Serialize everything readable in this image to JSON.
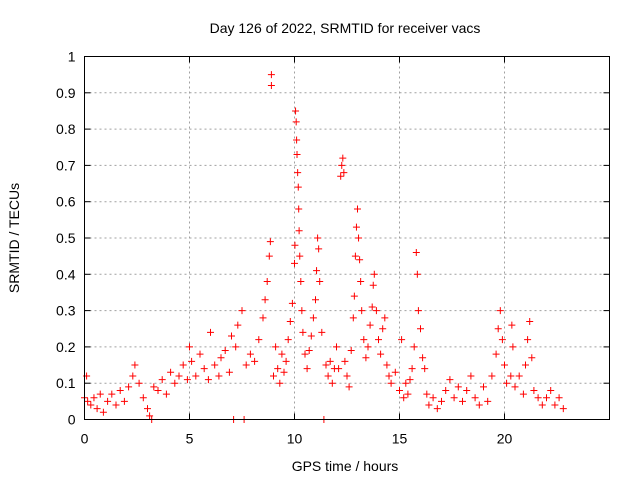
{
  "chart_data": {
    "type": "scatter",
    "title": "Day 126 of 2022, SRMTID for receiver vacs",
    "xlabel": "GPS time / hours",
    "ylabel": "SRMTID / TECUs",
    "xlim": [
      0,
      25
    ],
    "ylim": [
      0,
      1
    ],
    "xticks": [
      0,
      5,
      10,
      15,
      20
    ],
    "xtick_labels": [
      "0",
      "5",
      "10",
      "15",
      "20"
    ],
    "yticks": [
      0,
      0.1,
      0.2,
      0.3,
      0.4,
      0.5,
      0.6,
      0.7,
      0.8,
      0.9,
      1
    ],
    "ytick_labels": [
      "0",
      "0.1",
      "0.2",
      "0.3",
      "0.4",
      "0.5",
      "0.6",
      "0.7",
      "0.8",
      "0.9",
      "1"
    ],
    "grid": true,
    "marker": "+",
    "color": "#ff0000",
    "series": [
      {
        "name": "SRMTID",
        "points": [
          [
            0.0,
            0.06
          ],
          [
            0.1,
            0.12
          ],
          [
            0.15,
            0.05
          ],
          [
            0.3,
            0.04
          ],
          [
            0.45,
            0.06
          ],
          [
            0.6,
            0.03
          ],
          [
            0.75,
            0.07
          ],
          [
            0.9,
            0.02
          ],
          [
            1.1,
            0.05
          ],
          [
            1.3,
            0.07
          ],
          [
            1.5,
            0.04
          ],
          [
            1.7,
            0.08
          ],
          [
            1.9,
            0.05
          ],
          [
            2.1,
            0.09
          ],
          [
            2.3,
            0.12
          ],
          [
            2.4,
            0.15
          ],
          [
            2.6,
            0.1
          ],
          [
            2.8,
            0.06
          ],
          [
            3.0,
            0.03
          ],
          [
            3.1,
            0.01
          ],
          [
            3.2,
            0.0
          ],
          [
            3.3,
            0.09
          ],
          [
            3.5,
            0.08
          ],
          [
            3.7,
            0.11
          ],
          [
            3.9,
            0.07
          ],
          [
            4.1,
            0.13
          ],
          [
            4.3,
            0.1
          ],
          [
            4.5,
            0.12
          ],
          [
            4.7,
            0.15
          ],
          [
            4.9,
            0.11
          ],
          [
            5.0,
            0.2
          ],
          [
            5.1,
            0.16
          ],
          [
            5.3,
            0.12
          ],
          [
            5.5,
            0.18
          ],
          [
            5.7,
            0.14
          ],
          [
            5.9,
            0.11
          ],
          [
            6.0,
            0.24
          ],
          [
            6.2,
            0.15
          ],
          [
            6.4,
            0.12
          ],
          [
            6.5,
            0.17
          ],
          [
            6.7,
            0.19
          ],
          [
            6.9,
            0.13
          ],
          [
            7.0,
            0.23
          ],
          [
            7.1,
            0.0
          ],
          [
            7.2,
            0.2
          ],
          [
            7.3,
            0.26
          ],
          [
            7.5,
            0.3
          ],
          [
            7.6,
            0.0
          ],
          [
            7.7,
            0.15
          ],
          [
            7.9,
            0.18
          ],
          [
            8.1,
            0.16
          ],
          [
            8.3,
            0.22
          ],
          [
            8.5,
            0.28
          ],
          [
            8.6,
            0.33
          ],
          [
            8.7,
            0.38
          ],
          [
            8.8,
            0.45
          ],
          [
            8.85,
            0.49
          ],
          [
            8.9,
            0.95
          ],
          [
            8.9,
            0.92
          ],
          [
            9.0,
            0.12
          ],
          [
            9.1,
            0.2
          ],
          [
            9.2,
            0.14
          ],
          [
            9.3,
            0.1
          ],
          [
            9.4,
            0.18
          ],
          [
            9.5,
            0.13
          ],
          [
            9.6,
            0.16
          ],
          [
            9.7,
            0.22
          ],
          [
            9.8,
            0.27
          ],
          [
            9.9,
            0.32
          ],
          [
            10.0,
            0.43
          ],
          [
            10.02,
            0.48
          ],
          [
            10.05,
            0.85
          ],
          [
            10.08,
            0.82
          ],
          [
            10.1,
            0.77
          ],
          [
            10.12,
            0.73
          ],
          [
            10.15,
            0.68
          ],
          [
            10.18,
            0.64
          ],
          [
            10.2,
            0.58
          ],
          [
            10.22,
            0.52
          ],
          [
            10.25,
            0.45
          ],
          [
            10.3,
            0.38
          ],
          [
            10.35,
            0.3
          ],
          [
            10.4,
            0.24
          ],
          [
            10.5,
            0.18
          ],
          [
            10.6,
            0.14
          ],
          [
            10.7,
            0.19
          ],
          [
            10.8,
            0.23
          ],
          [
            10.9,
            0.28
          ],
          [
            11.0,
            0.33
          ],
          [
            11.05,
            0.41
          ],
          [
            11.1,
            0.5
          ],
          [
            11.15,
            0.47
          ],
          [
            11.2,
            0.38
          ],
          [
            11.3,
            0.24
          ],
          [
            11.4,
            0.0
          ],
          [
            11.5,
            0.15
          ],
          [
            11.6,
            0.12
          ],
          [
            11.7,
            0.16
          ],
          [
            11.8,
            0.1
          ],
          [
            11.9,
            0.14
          ],
          [
            12.0,
            0.2
          ],
          [
            12.1,
            0.14
          ],
          [
            12.2,
            0.67
          ],
          [
            12.25,
            0.7
          ],
          [
            12.3,
            0.72
          ],
          [
            12.35,
            0.68
          ],
          [
            12.4,
            0.16
          ],
          [
            12.5,
            0.12
          ],
          [
            12.6,
            0.09
          ],
          [
            12.7,
            0.19
          ],
          [
            12.8,
            0.28
          ],
          [
            12.85,
            0.34
          ],
          [
            12.9,
            0.45
          ],
          [
            12.95,
            0.53
          ],
          [
            13.0,
            0.58
          ],
          [
            13.05,
            0.5
          ],
          [
            13.1,
            0.44
          ],
          [
            13.15,
            0.38
          ],
          [
            13.2,
            0.3
          ],
          [
            13.3,
            0.22
          ],
          [
            13.4,
            0.17
          ],
          [
            13.5,
            0.2
          ],
          [
            13.6,
            0.26
          ],
          [
            13.7,
            0.31
          ],
          [
            13.75,
            0.37
          ],
          [
            13.8,
            0.4
          ],
          [
            13.9,
            0.3
          ],
          [
            14.0,
            0.22
          ],
          [
            14.1,
            0.18
          ],
          [
            14.2,
            0.25
          ],
          [
            14.3,
            0.28
          ],
          [
            14.4,
            0.15
          ],
          [
            14.5,
            0.12
          ],
          [
            14.6,
            0.1
          ],
          [
            14.8,
            0.13
          ],
          [
            15.0,
            0.08
          ],
          [
            15.1,
            0.22
          ],
          [
            15.2,
            0.06
          ],
          [
            15.3,
            0.1
          ],
          [
            15.4,
            0.07
          ],
          [
            15.5,
            0.11
          ],
          [
            15.6,
            0.14
          ],
          [
            15.7,
            0.2
          ],
          [
            15.8,
            0.46
          ],
          [
            15.85,
            0.4
          ],
          [
            15.9,
            0.3
          ],
          [
            16.0,
            0.25
          ],
          [
            16.1,
            0.17
          ],
          [
            16.2,
            0.14
          ],
          [
            16.3,
            0.07
          ],
          [
            16.4,
            0.04
          ],
          [
            16.6,
            0.06
          ],
          [
            16.8,
            0.03
          ],
          [
            17.0,
            0.05
          ],
          [
            17.2,
            0.08
          ],
          [
            17.4,
            0.11
          ],
          [
            17.6,
            0.06
          ],
          [
            17.8,
            0.09
          ],
          [
            18.0,
            0.05
          ],
          [
            18.2,
            0.08
          ],
          [
            18.4,
            0.12
          ],
          [
            18.6,
            0.06
          ],
          [
            18.8,
            0.04
          ],
          [
            19.0,
            0.09
          ],
          [
            19.2,
            0.05
          ],
          [
            19.4,
            0.12
          ],
          [
            19.6,
            0.18
          ],
          [
            19.7,
            0.25
          ],
          [
            19.8,
            0.3
          ],
          [
            19.9,
            0.22
          ],
          [
            20.0,
            0.15
          ],
          [
            20.1,
            0.1
          ],
          [
            20.3,
            0.12
          ],
          [
            20.35,
            0.26
          ],
          [
            20.4,
            0.2
          ],
          [
            20.5,
            0.09
          ],
          [
            20.7,
            0.12
          ],
          [
            20.9,
            0.07
          ],
          [
            21.0,
            0.15
          ],
          [
            21.1,
            0.22
          ],
          [
            21.2,
            0.27
          ],
          [
            21.3,
            0.17
          ],
          [
            21.4,
            0.08
          ],
          [
            21.6,
            0.06
          ],
          [
            21.8,
            0.04
          ],
          [
            22.0,
            0.06
          ],
          [
            22.2,
            0.08
          ],
          [
            22.4,
            0.04
          ],
          [
            22.6,
            0.06
          ],
          [
            22.8,
            0.03
          ]
        ]
      }
    ]
  }
}
